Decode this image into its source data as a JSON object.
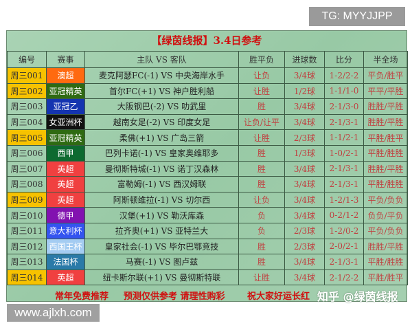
{
  "watermarks": {
    "tg": "TG: MYYJJPP",
    "site": "www.ajlxh.com",
    "zhihu": "知乎 @绿茵线报"
  },
  "title": "【绿茵线报】3.4日参考",
  "headers": [
    "编号",
    "赛事",
    "主队 VS 客队",
    "胜平负",
    "进球数",
    "比分",
    "半全场"
  ],
  "rows": [
    {
      "id": "周三001",
      "league": "澳超",
      "id_color": "#f7c200",
      "league_color": "#ff6a10",
      "match": "麦克阿瑟FC(-1) VS 中央海岸水手",
      "wdl": "让负",
      "goals": "3/4球",
      "score": "1-2/2-2",
      "htft": "平负/胜平"
    },
    {
      "id": "周三002",
      "league": "亚冠精英",
      "id_color": "#f7c200",
      "league_color": "#2f6a12",
      "match": "首尔FC(+1) VS 神户胜利船",
      "wdl": "让胜",
      "goals": "1/2球",
      "score": "1-1/1-0",
      "htft": "平平/平胜"
    },
    {
      "id": "周三003",
      "league": "亚冠乙",
      "id_color": "",
      "league_color": "#1434b0",
      "match": "大阪钢巴(-2) VS 叻武里",
      "wdl": "胜",
      "goals": "3/4球",
      "score": "2-1/3-0",
      "htft": "胜胜/平胜"
    },
    {
      "id": "周三004",
      "league": "女亚洲杯",
      "id_color": "",
      "league_color": "#111111",
      "match": "越南女足(-2) VS 印度女足",
      "wdl": "让负/让平",
      "goals": "3/4球",
      "score": "2-1/3-1",
      "htft": "胜胜/平胜"
    },
    {
      "id": "周三005",
      "league": "亚冠精英",
      "id_color": "#f7c200",
      "league_color": "#2f6a12",
      "match": "柔佛(+1) VS 广岛三箭",
      "wdl": "让胜",
      "goals": "2/3球",
      "score": "1-1/2-1",
      "htft": "平胜/胜平"
    },
    {
      "id": "周三006",
      "league": "西甲",
      "id_color": "",
      "league_color": "#0d6a30",
      "match": "巴列卡诺(-1) VS 皇家奥维耶多",
      "wdl": "胜",
      "goals": "1/3球",
      "score": "1-0/2-1",
      "htft": "平胜/胜胜"
    },
    {
      "id": "周三007",
      "league": "英超",
      "id_color": "",
      "league_color": "#f04040",
      "match": "曼彻斯特城(-1) VS 诺丁汉森林",
      "wdl": "胜",
      "goals": "3/4球",
      "score": "2-1/3-1",
      "htft": "胜胜/平胜"
    },
    {
      "id": "周三008",
      "league": "英超",
      "id_color": "",
      "league_color": "#f04040",
      "match": "富勒姆(-1) VS 西汉姆联",
      "wdl": "胜",
      "goals": "3/4球",
      "score": "2-1/3-1",
      "htft": "平胜/胜胜"
    },
    {
      "id": "周三009",
      "league": "英超",
      "id_color": "#f7c200",
      "league_color": "#f04040",
      "match": "阿斯顿维拉(-1) VS 切尔西",
      "wdl": "让负",
      "goals": "3/4球",
      "score": "1-2/1-3",
      "htft": "平负/负负"
    },
    {
      "id": "周三010",
      "league": "德甲",
      "id_color": "",
      "league_color": "#8212b0",
      "match": "汉堡(+1) VS 勒沃库森",
      "wdl": "负",
      "goals": "3/4球",
      "score": "0-2/1-2",
      "htft": "负负/平负"
    },
    {
      "id": "周三011",
      "league": "意大利杯",
      "id_color": "",
      "league_color": "#3454f0",
      "match": "拉齐奥(+1) VS 亚特兰大",
      "wdl": "负",
      "goals": "2/3球",
      "score": "1-2/0-2",
      "htft": "平负/负负"
    },
    {
      "id": "周三012",
      "league": "西国王杯",
      "id_color": "",
      "league_color": "#a4ccf2",
      "match": "皇家社会(-1) VS 毕尔巴鄂竞技",
      "wdl": "胜",
      "goals": "2/3球",
      "score": "2-0/2-1",
      "htft": "胜胜/平胜"
    },
    {
      "id": "周三013",
      "league": "法国杯",
      "id_color": "",
      "league_color": "#2a7aa8",
      "match": "马赛(-1) VS 图卢兹",
      "wdl": "胜",
      "goals": "3/4球",
      "score": "2-1/3-1",
      "htft": "平胜/胜胜"
    },
    {
      "id": "周三014",
      "league": "英超",
      "id_color": "#f7c200",
      "league_color": "#f04040",
      "match": "纽卡斯尔联(+1) VS 曼彻斯特联",
      "wdl": "让胜",
      "goals": "3/4球",
      "score": "2-1/2-2",
      "htft": "平胜/胜平"
    }
  ],
  "footer": [
    "常年免费推荐",
    "预测仅供参考  请理性购彩",
    "祝大家好运长红"
  ]
}
